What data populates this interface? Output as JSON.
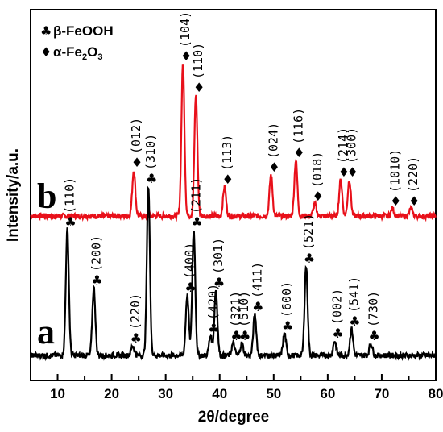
{
  "chart_data": {
    "type": "line",
    "xlabel": "2θ/degree",
    "ylabel": "Intensity/a.u.",
    "xlim": [
      5,
      80
    ],
    "x_ticks": [
      "10",
      "20",
      "30",
      "40",
      "50",
      "60",
      "70",
      "80"
    ],
    "grid": false,
    "legend_position": "top-left",
    "legend": [
      {
        "symbol": "♣",
        "text": "β-FeOOH",
        "color": "#000000"
      },
      {
        "symbol": "♦",
        "text": "α-Fe2O3",
        "color": "#000000"
      }
    ],
    "series": [
      {
        "label": "b",
        "color": "#e8101a",
        "baseline": 0.0,
        "peaks": [
          {
            "x": 24.1,
            "h": 0.19,
            "hkl": "(012)"
          },
          {
            "x": 33.2,
            "h": 0.63,
            "hkl": "(104)"
          },
          {
            "x": 35.6,
            "h": 0.5,
            "hkl": "(110)"
          },
          {
            "x": 40.9,
            "h": 0.12,
            "hkl": "(113)"
          },
          {
            "x": 49.5,
            "h": 0.17,
            "hkl": "(024)"
          },
          {
            "x": 54.1,
            "h": 0.23,
            "hkl": "(116)"
          },
          {
            "x": 57.6,
            "h": 0.05,
            "hkl": "(018)"
          },
          {
            "x": 62.4,
            "h": 0.15,
            "hkl": "(214)"
          },
          {
            "x": 64.0,
            "h": 0.15,
            "hkl": "(300)"
          },
          {
            "x": 72.0,
            "h": 0.03,
            "hkl": "(1010)"
          },
          {
            "x": 75.4,
            "h": 0.03,
            "hkl": "(220)"
          }
        ]
      },
      {
        "label": "a",
        "color": "#000000",
        "baseline": 0.0,
        "peaks": [
          {
            "x": 11.8,
            "h": 0.52,
            "hkl": "(110)"
          },
          {
            "x": 16.7,
            "h": 0.28,
            "hkl": "(200)"
          },
          {
            "x": 23.9,
            "h": 0.04,
            "hkl": "(220)"
          },
          {
            "x": 26.8,
            "h": 0.7,
            "hkl": "(310)"
          },
          {
            "x": 34.0,
            "h": 0.25,
            "hkl": "(400)"
          },
          {
            "x": 35.2,
            "h": 0.52,
            "hkl": "(211)"
          },
          {
            "x": 38.3,
            "h": 0.08,
            "hkl": "(420)"
          },
          {
            "x": 39.3,
            "h": 0.27,
            "hkl": "(301)"
          },
          {
            "x": 42.5,
            "h": 0.05,
            "hkl": "(321)"
          },
          {
            "x": 44.1,
            "h": 0.05,
            "hkl": "(510)"
          },
          {
            "x": 46.5,
            "h": 0.17,
            "hkl": "(411)"
          },
          {
            "x": 52.0,
            "h": 0.09,
            "hkl": "(600)"
          },
          {
            "x": 56.0,
            "h": 0.37,
            "hkl": "(521)"
          },
          {
            "x": 61.3,
            "h": 0.06,
            "hkl": "(002)"
          },
          {
            "x": 64.4,
            "h": 0.11,
            "hkl": "(541)"
          },
          {
            "x": 68.0,
            "h": 0.05,
            "hkl": "(730)"
          }
        ]
      }
    ]
  }
}
